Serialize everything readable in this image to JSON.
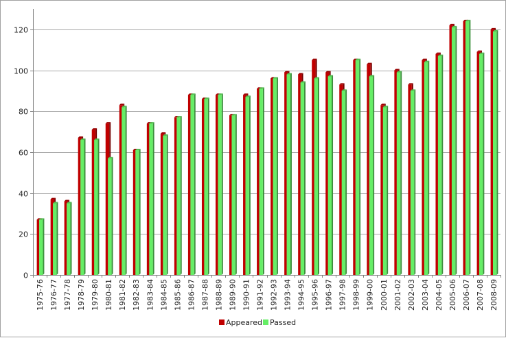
{
  "chart_data": {
    "type": "bar",
    "title": "",
    "xlabel": "",
    "ylabel": "",
    "ylim": [
      0,
      130
    ],
    "yticks": [
      0,
      20,
      40,
      60,
      80,
      100,
      120
    ],
    "grid": true,
    "legend_position": "bottom-center",
    "categories": [
      "1975-76",
      "1976-77",
      "1977-78",
      "1978-79",
      "1979-80",
      "1980-81",
      "1981-82",
      "1982-83",
      "1983-84",
      "1984-85",
      "1985-86",
      "1986-87",
      "1987-88",
      "1988-89",
      "1989-90",
      "1990-91",
      "1991-92",
      "1992-93",
      "1993-94",
      "1994-95",
      "1995-96",
      "1996-97",
      "1997-98",
      "1998-99",
      "1999-00",
      "2000-01",
      "2001-02",
      "2002-03",
      "2003-04",
      "2004-05",
      "2005-06",
      "2006-07",
      "2007-08",
      "2008-09"
    ],
    "series": [
      {
        "name": "Appeared",
        "color": "#c00000",
        "values": [
          27,
          37,
          36,
          67,
          71,
          74,
          83,
          61,
          74,
          69,
          77,
          88,
          86,
          88,
          78,
          88,
          91,
          96,
          99,
          98,
          105,
          99,
          93,
          105,
          103,
          83,
          100,
          93,
          105,
          108,
          122,
          124,
          109,
          120
        ]
      },
      {
        "name": "Passed",
        "color": "#66ee66",
        "values": [
          27,
          35,
          35,
          66,
          66,
          57,
          82,
          61,
          74,
          68,
          77,
          88,
          86,
          88,
          78,
          87,
          91,
          96,
          98,
          94,
          96,
          97,
          90,
          105,
          97,
          82,
          99,
          90,
          104,
          107,
          121,
          124,
          108,
          119
        ]
      }
    ]
  }
}
